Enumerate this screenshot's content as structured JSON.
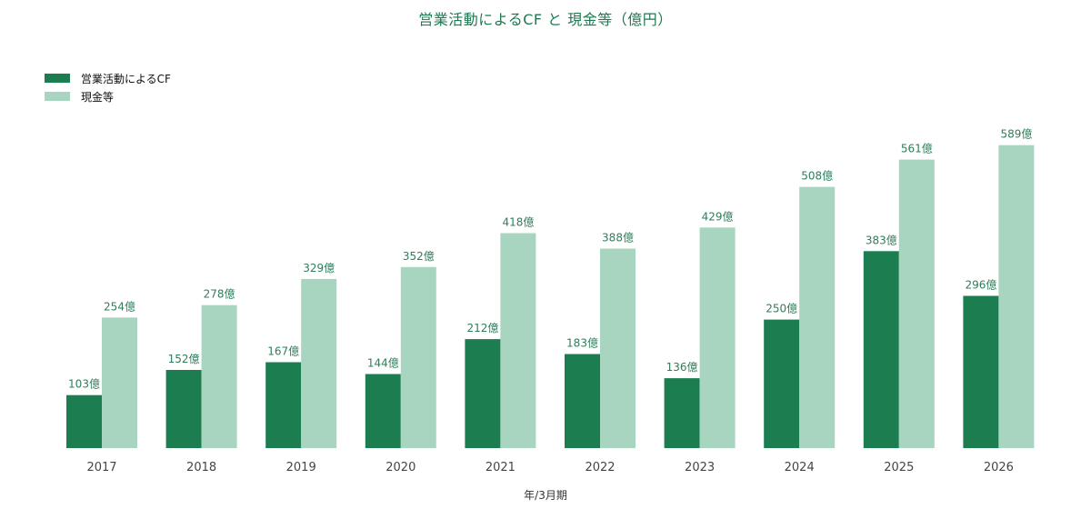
{
  "chart_data": {
    "type": "bar",
    "title": "営業活動によるCF と 現金等（億円）",
    "xlabel": "年/3月期",
    "ylabel": "",
    "categories": [
      "2017",
      "2018",
      "2019",
      "2020",
      "2021",
      "2022",
      "2023",
      "2024",
      "2025",
      "2026"
    ],
    "series": [
      {
        "name": "営業活動によるCF",
        "color": "#1b7d50",
        "values": [
          103,
          152,
          167,
          144,
          212,
          183,
          136,
          250,
          383,
          296
        ],
        "labels": [
          "103億",
          "152億",
          "167億",
          "144億",
          "212億",
          "183億",
          "136億",
          "250億",
          "383億",
          "296億"
        ]
      },
      {
        "name": "現金等",
        "color": "#a8d5bf",
        "values": [
          254,
          278,
          329,
          352,
          418,
          388,
          429,
          508,
          561,
          589
        ],
        "labels": [
          "254億",
          "278億",
          "329億",
          "352億",
          "418億",
          "388億",
          "429億",
          "508億",
          "561億",
          "589億"
        ]
      }
    ],
    "ylim": [
      0,
      620
    ],
    "grid": false,
    "legend_position": "top-left",
    "label_color": "#2f7d5a",
    "tick_color": "#444444"
  }
}
